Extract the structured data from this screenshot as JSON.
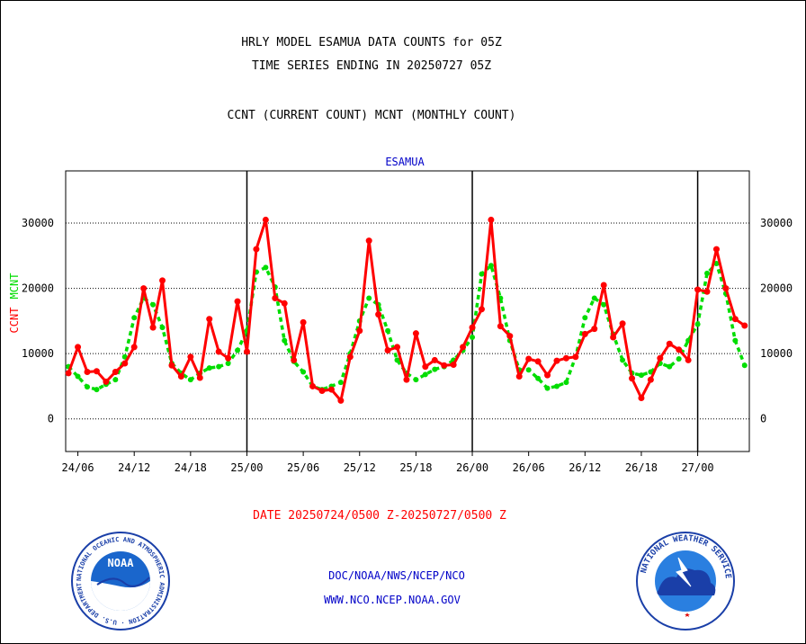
{
  "header": {
    "title_line1": "HRLY MODEL ESAMUA DATA COUNTS for 05Z",
    "title_line2": "TIME SERIES ENDING IN 20250727 05Z",
    "subtitle": "CCNT (CURRENT COUNT) MCNT (MONTHLY COUNT)"
  },
  "footer": {
    "date_range": "DATE 20250724/0500 Z-20250727/0500 Z",
    "org_line": "DOC/NOAA/NWS/NCEP/NCO",
    "website": "WWW.NCO.NCEP.NOAA.GOV"
  },
  "logos": {
    "noaa_label": "NOAA",
    "noaa_ring_text": "NATIONAL OCEANIC AND ATMOSPHERIC ADMINISTRATION · U.S. DEPARTMENT OF COMMERCE",
    "nws_ring_text": "NATIONAL WEATHER SERVICE"
  },
  "colors": {
    "ccnt": "#ff0000",
    "mcnt": "#00dd00",
    "station": "#0000c8",
    "date": "#ff0000"
  },
  "chart_data": {
    "type": "line",
    "station": "ESAMUA",
    "ylabel_ccnt": "CCNT",
    "ylabel_mcnt": "MCNT",
    "ylim": [
      -5000,
      38000
    ],
    "yticks": [
      0,
      10000,
      20000,
      30000
    ],
    "ytick_labels": [
      "0",
      "10000",
      "20000",
      "30000"
    ],
    "x_start_hour": 5,
    "xlim_hours": [
      4.7,
      77.5
    ],
    "xticks": [
      6,
      12,
      18,
      24,
      30,
      36,
      42,
      48,
      54,
      60,
      66,
      72
    ],
    "xtick_labels": [
      "24/06",
      "24/12",
      "24/18",
      "25/00",
      "25/06",
      "25/12",
      "25/18",
      "26/00",
      "26/06",
      "26/12",
      "26/18",
      "27/00"
    ],
    "day_boundaries": [
      24,
      48,
      72
    ],
    "gridlines_y": [
      0,
      10000,
      20000,
      30000
    ],
    "series": [
      {
        "name": "CCNT",
        "values": [
          7000,
          11000,
          7200,
          7300,
          5700,
          7200,
          8500,
          11000,
          20000,
          14000,
          21200,
          8200,
          6500,
          9500,
          6300,
          15300,
          10300,
          9300,
          18000,
          10300,
          26000,
          30500,
          18500,
          17700,
          9000,
          14800,
          5000,
          4300,
          4500,
          2800,
          9500,
          13500,
          27300,
          16000,
          10500,
          11000,
          6000,
          13100,
          8000,
          9000,
          8200,
          8300,
          11000,
          14000,
          16800,
          30500,
          14200,
          12700,
          6500,
          9200,
          8800,
          6700,
          8900,
          9300,
          9500,
          13000,
          13800,
          20500,
          12500,
          14600,
          6200,
          3200,
          6000,
          9300,
          11500,
          10600,
          9000,
          19800,
          19500,
          26000,
          20000,
          15300,
          14300
        ]
      },
      {
        "name": "MCNT",
        "values": [
          8000,
          6500,
          4900,
          4500,
          5300,
          6000,
          9500,
          15500,
          18500,
          17500,
          14000,
          8500,
          7000,
          6000,
          7000,
          7800,
          8000,
          8500,
          10500,
          13500,
          22500,
          23200,
          20200,
          12000,
          8800,
          7200,
          5000,
          4500,
          5000,
          5600,
          10000,
          15000,
          18500,
          17500,
          13500,
          9000,
          7000,
          6000,
          6800,
          7600,
          8000,
          9000,
          10500,
          12500,
          22200,
          23500,
          18500,
          12000,
          7500,
          7500,
          6200,
          4700,
          5000,
          5600,
          9500,
          15500,
          18500,
          17500,
          13000,
          9000,
          7000,
          6700,
          7200,
          8500,
          8000,
          9200,
          12000,
          14500,
          22300,
          23800,
          19200,
          12000,
          8200
        ]
      }
    ]
  }
}
